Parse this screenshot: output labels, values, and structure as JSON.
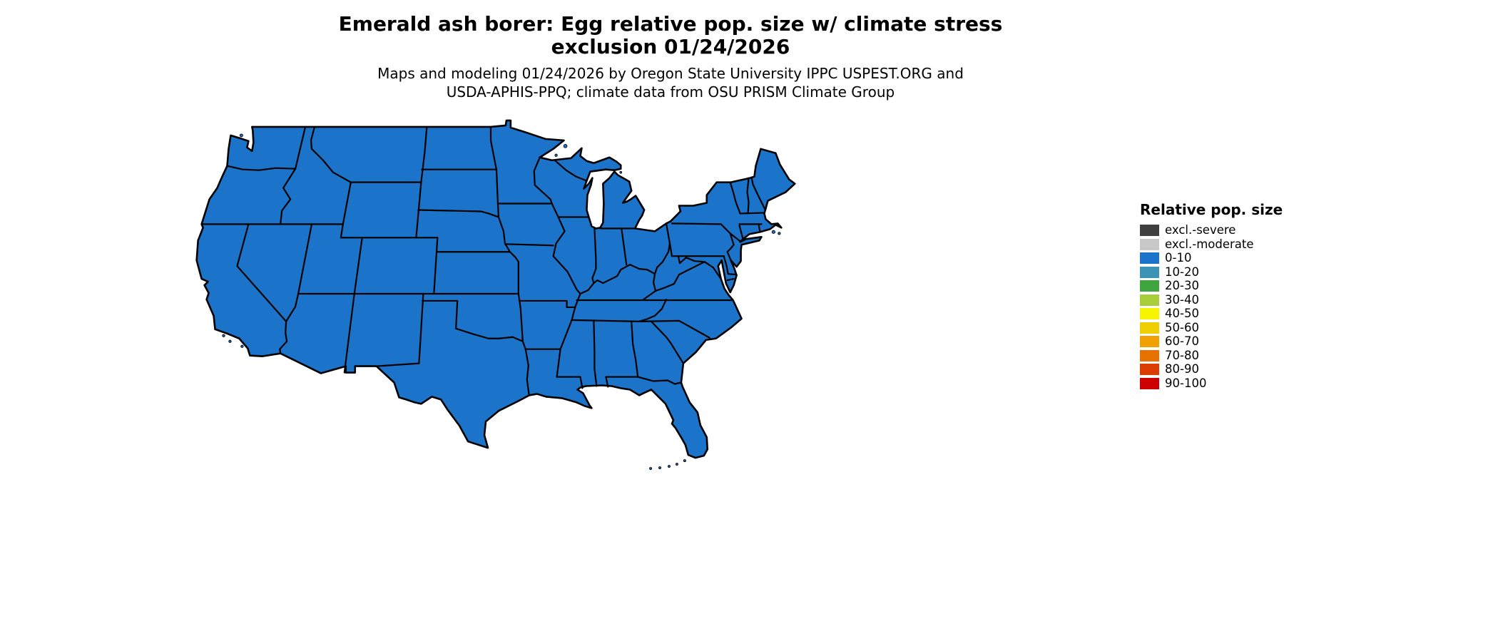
{
  "title": {
    "line1": "Emerald ash borer: Egg relative pop. size w/ climate stress",
    "line2": "exclusion 01/24/2026"
  },
  "subtitle": {
    "line1": "Maps and modeling 01/24/2026 by Oregon State University IPPC USPEST.ORG and",
    "line2": "USDA-APHIS-PPQ; climate data from OSU PRISM Climate Group"
  },
  "legend": {
    "title": "Relative pop. size",
    "items": [
      {
        "label": "excl.-severe",
        "color": "#404040"
      },
      {
        "label": "excl.-moderate",
        "color": "#c7c7c7"
      },
      {
        "label": "0-10",
        "color": "#1b74c9"
      },
      {
        "label": "10-20",
        "color": "#3d93b4"
      },
      {
        "label": "20-30",
        "color": "#3fa53f"
      },
      {
        "label": "30-40",
        "color": "#a7ce3a"
      },
      {
        "label": "40-50",
        "color": "#f8f500"
      },
      {
        "label": "50-60",
        "color": "#efce00"
      },
      {
        "label": "60-70",
        "color": "#f0a000"
      },
      {
        "label": "70-80",
        "color": "#e87200"
      },
      {
        "label": "80-90",
        "color": "#db3d00"
      },
      {
        "label": "90-100",
        "color": "#cc0000"
      }
    ]
  },
  "map": {
    "land_fill": "#1b74c9",
    "border_color": "#000000",
    "background": "#ffffff"
  }
}
